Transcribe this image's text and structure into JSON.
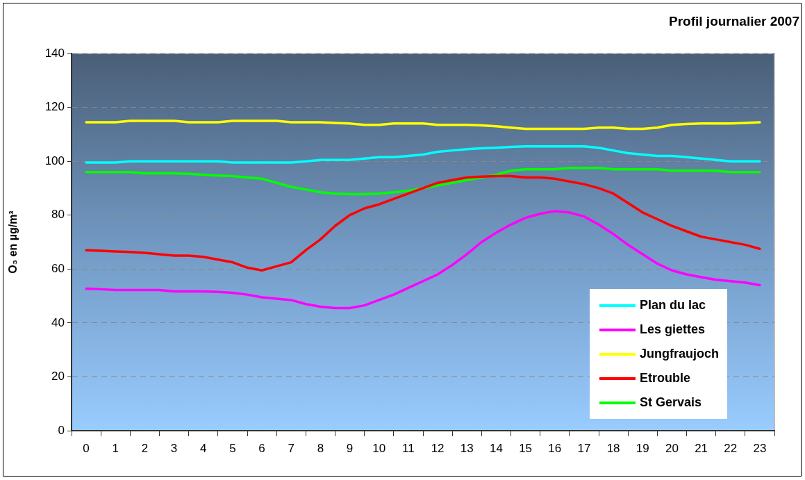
{
  "chart_data": {
    "type": "line",
    "title": "Profil journalier 2007",
    "ylabel": "O₃ en µg/m³",
    "x": [
      0,
      0.5,
      1,
      1.5,
      2,
      2.5,
      3,
      3.5,
      4,
      4.5,
      5,
      5.5,
      6,
      6.5,
      7,
      7.5,
      8,
      8.5,
      9,
      9.5,
      10,
      10.5,
      11,
      11.5,
      12,
      12.5,
      13,
      13.5,
      14,
      14.5,
      15,
      15.5,
      16,
      16.5,
      17,
      17.5,
      18,
      18.5,
      19,
      19.5,
      20,
      20.5,
      21,
      21.5,
      22,
      22.5,
      23
    ],
    "series": [
      {
        "name": "Plan du lac",
        "color": "#00ffff",
        "values": [
          99.5,
          99.5,
          99.5,
          100,
          100,
          100,
          100,
          100,
          100,
          100,
          99.5,
          99.5,
          99.5,
          99.5,
          99.5,
          100,
          100.5,
          100.5,
          100.5,
          101,
          101.5,
          101.5,
          102,
          102.5,
          103.5,
          104,
          104.5,
          104.8,
          105,
          105.3,
          105.5,
          105.5,
          105.5,
          105.5,
          105.5,
          105,
          104,
          103,
          102.5,
          102,
          102,
          101.5,
          101,
          100.5,
          100,
          100,
          100
        ]
      },
      {
        "name": "Les giettes",
        "color": "#ff00ff",
        "values": [
          52.7,
          52.5,
          52.2,
          52.2,
          52.2,
          52.2,
          51.7,
          51.7,
          51.7,
          51.5,
          51.2,
          50.5,
          49.5,
          49,
          48.5,
          47,
          46,
          45.5,
          45.5,
          46.5,
          48.5,
          50.5,
          53,
          55.5,
          58,
          61.5,
          65.5,
          70,
          73.5,
          76.5,
          79,
          80.5,
          81.5,
          81,
          79.5,
          76.5,
          73,
          69,
          65.5,
          62,
          59.5,
          58,
          57,
          56,
          55.5,
          55,
          54
        ]
      },
      {
        "name": "Jungfraujoch",
        "color": "#ffff00",
        "values": [
          114.5,
          114.5,
          114.5,
          115,
          115,
          115,
          115,
          114.5,
          114.5,
          114.5,
          115,
          115,
          115,
          115,
          114.5,
          114.5,
          114.5,
          114.2,
          114,
          113.5,
          113.5,
          114,
          114,
          114,
          113.5,
          113.5,
          113.5,
          113.3,
          113,
          112.5,
          112,
          112,
          112,
          112,
          112,
          112.5,
          112.5,
          112,
          112,
          112.5,
          113.5,
          113.8,
          114,
          114,
          114,
          114.2,
          114.5
        ]
      },
      {
        "name": "Etrouble",
        "color": "#ff0000",
        "values": [
          67,
          66.8,
          66.5,
          66.3,
          66,
          65.5,
          65,
          65,
          64.5,
          63.5,
          62.5,
          60.5,
          59.5,
          61,
          62.5,
          67,
          71,
          76,
          80,
          82.5,
          84,
          86,
          88,
          90,
          92,
          93,
          94,
          94.3,
          94.5,
          94.5,
          94,
          94,
          93.5,
          92.5,
          91.5,
          90,
          88,
          84.5,
          81,
          78.5,
          76,
          74,
          72,
          71,
          70,
          69,
          67.5
        ]
      },
      {
        "name": "St Gervais",
        "color": "#00ff00",
        "values": [
          96,
          96,
          96,
          96,
          95.5,
          95.5,
          95.5,
          95.3,
          95,
          94.7,
          94.5,
          94,
          93.5,
          92,
          90.5,
          89.5,
          88.5,
          88,
          87.8,
          87.8,
          88,
          88.5,
          89,
          90,
          91,
          92,
          93,
          94,
          95,
          96.5,
          97,
          97,
          97,
          97.5,
          97.5,
          97.5,
          97,
          97,
          97,
          97,
          96.5,
          96.5,
          96.5,
          96.5,
          96,
          96,
          96
        ]
      }
    ],
    "xlim": [
      -0.5,
      23.5
    ],
    "xticks": [
      {
        "value": -0.5,
        "label": null
      },
      0,
      {
        "value": 0.5,
        "label": null
      },
      1,
      {
        "value": 1.5,
        "label": null
      },
      2,
      {
        "value": 2.5,
        "label": null
      },
      3,
      {
        "value": 3.5,
        "label": null
      },
      4,
      {
        "value": 4.5,
        "label": null
      },
      5,
      {
        "value": 5.5,
        "label": null
      },
      6,
      {
        "value": 6.5,
        "label": null
      },
      7,
      {
        "value": 7.5,
        "label": null
      },
      8,
      {
        "value": 8.5,
        "label": null
      },
      9,
      {
        "value": 9.5,
        "label": null
      },
      10,
      {
        "value": 10.5,
        "label": null
      },
      11,
      {
        "value": 11.5,
        "label": null
      },
      12,
      {
        "value": 12.5,
        "label": null
      },
      13,
      {
        "value": 13.5,
        "label": null
      },
      14,
      {
        "value": 14.5,
        "label": null
      },
      15,
      {
        "value": 15.5,
        "label": null
      },
      16,
      {
        "value": 16.5,
        "label": null
      },
      17,
      {
        "value": 17.5,
        "label": null
      },
      18,
      {
        "value": 18.5,
        "label": null
      },
      19,
      {
        "value": 19.5,
        "label": null
      },
      20,
      {
        "value": 20.5,
        "label": null
      },
      21,
      {
        "value": 21.5,
        "label": null
      },
      22,
      {
        "value": 22.5,
        "label": null
      },
      23,
      {
        "value": 23.5,
        "label": null
      }
    ],
    "ylim": [
      0,
      140
    ],
    "yticks": [
      0,
      20,
      40,
      60,
      80,
      100,
      120,
      140
    ],
    "grid": "y",
    "legend": "bottom right",
    "marker": "none",
    "line_style": "solid"
  }
}
